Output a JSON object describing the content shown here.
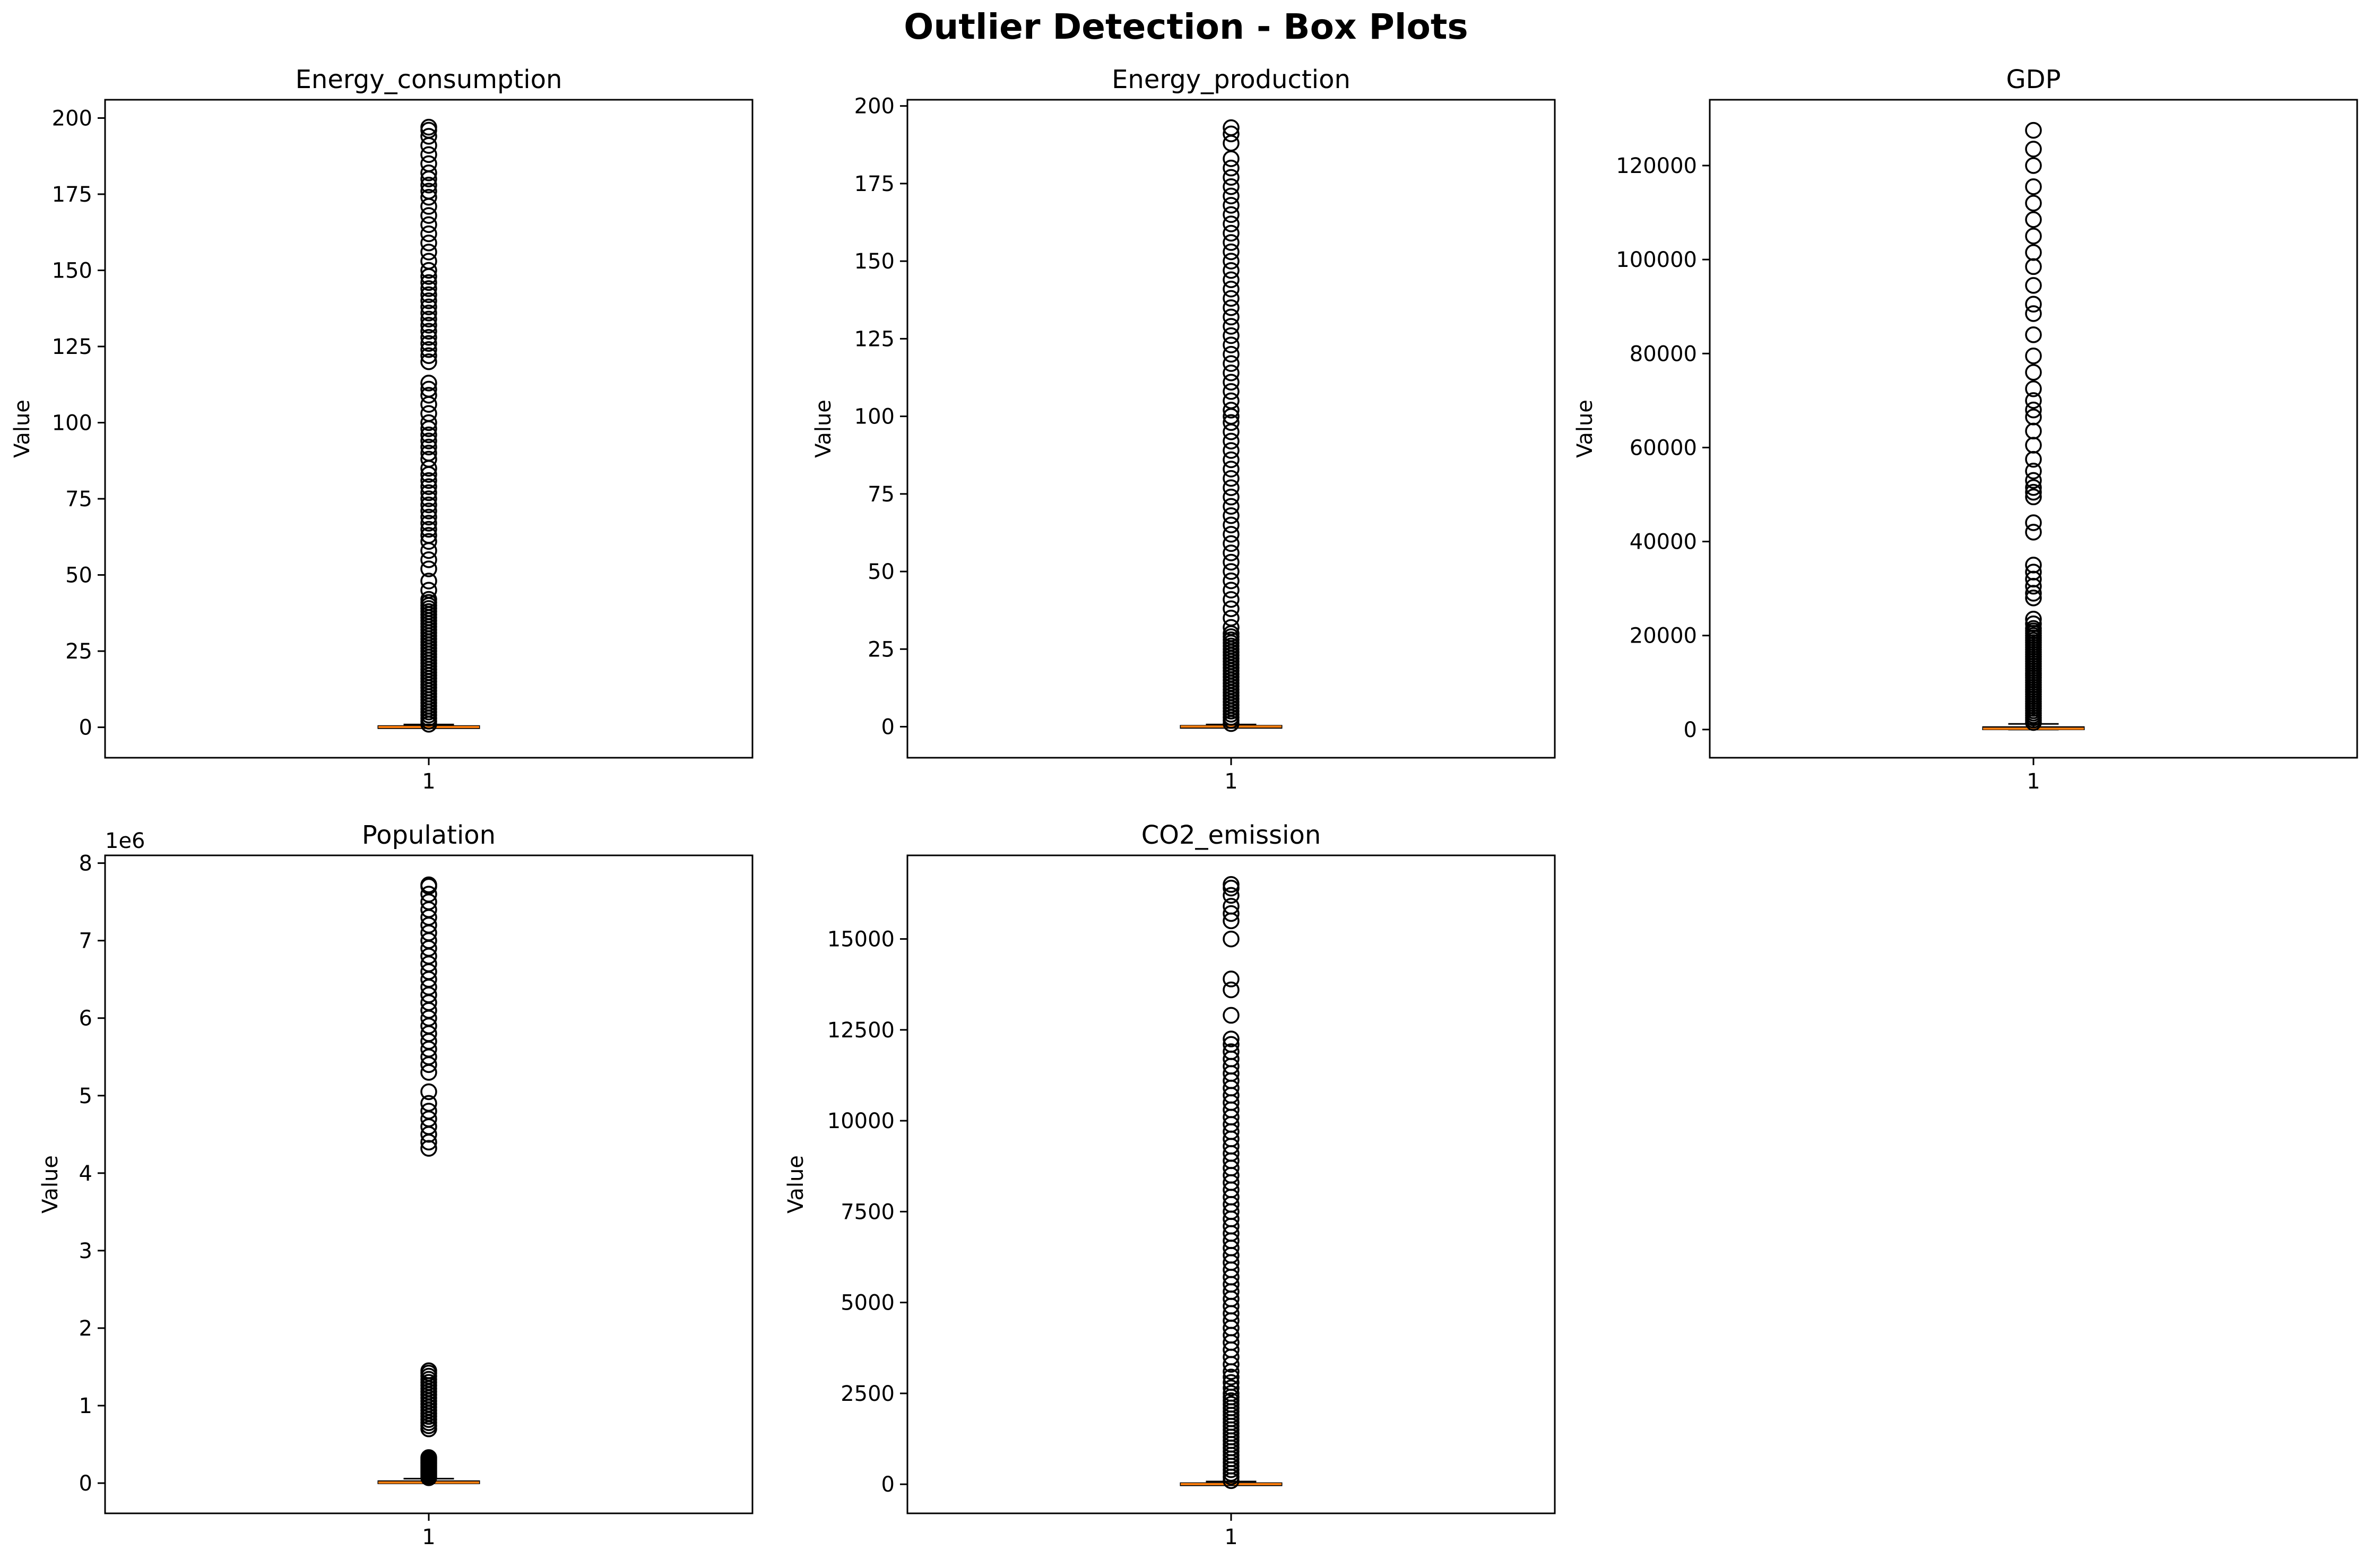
{
  "figure_title": "Outlier Detection - Box Plots",
  "colors": {
    "median": "#ff7f0e",
    "frame": "#000000",
    "background": "#ffffff"
  },
  "chart_data": [
    {
      "type": "box",
      "title": "Energy_consumption",
      "xlabel": "",
      "ylabel": "Value",
      "categories": [
        "1"
      ],
      "ylim": [
        -10,
        206
      ],
      "yticks": [
        0,
        25,
        50,
        75,
        100,
        125,
        150,
        175,
        200
      ],
      "y_tick_labels": [
        "0",
        "25",
        "50",
        "75",
        "100",
        "125",
        "150",
        "175",
        "200"
      ],
      "offset_label": "",
      "grid": false,
      "box": {
        "min": 0,
        "q1": 0.01,
        "median": 0.08,
        "q3": 0.4,
        "max": 0.9
      },
      "outliers": [
        1,
        2,
        3,
        4,
        5,
        6,
        7,
        8,
        9,
        10,
        11,
        12,
        13,
        14,
        15,
        16,
        17,
        18,
        19,
        20,
        21,
        22,
        23,
        24,
        25,
        26,
        27,
        28,
        29,
        30,
        31,
        32,
        33,
        34,
        35,
        36,
        37,
        38,
        39,
        40,
        41,
        42,
        45,
        48,
        52,
        55,
        58,
        61,
        63,
        65,
        67,
        69,
        71,
        73,
        75,
        77,
        79,
        81,
        83,
        85,
        88,
        90,
        92,
        94,
        96,
        98,
        100,
        103,
        106,
        109,
        111,
        113,
        120,
        122,
        124,
        126,
        128,
        130,
        132,
        134,
        136,
        138,
        140,
        142,
        144,
        146,
        148,
        150,
        153,
        156,
        159,
        162,
        165,
        168,
        171,
        174,
        176,
        178,
        180,
        182,
        185,
        188,
        191,
        194,
        196,
        197
      ]
    },
    {
      "type": "box",
      "title": "Energy_production",
      "xlabel": "",
      "ylabel": "Value",
      "categories": [
        "1"
      ],
      "ylim": [
        -10,
        202
      ],
      "yticks": [
        0,
        25,
        50,
        75,
        100,
        125,
        150,
        175,
        200
      ],
      "y_tick_labels": [
        "0",
        "25",
        "50",
        "75",
        "100",
        "125",
        "150",
        "175",
        "200"
      ],
      "offset_label": "",
      "grid": false,
      "box": {
        "min": 0,
        "q1": 0.0,
        "median": 0.05,
        "q3": 0.3,
        "max": 0.7
      },
      "outliers": [
        1,
        2,
        3,
        4,
        5,
        6,
        7,
        8,
        9,
        10,
        11,
        12,
        13,
        14,
        15,
        16,
        17,
        18,
        19,
        20,
        21,
        22,
        23,
        24,
        25,
        26,
        27,
        28,
        29,
        30,
        32,
        35,
        38,
        41,
        44,
        47,
        50,
        53,
        56,
        59,
        62,
        65,
        68,
        71,
        74,
        77,
        80,
        83,
        86,
        89,
        92,
        95,
        98,
        100,
        102,
        105,
        108,
        111,
        114,
        117,
        120,
        123,
        126,
        129,
        132,
        135,
        138,
        141,
        144,
        147,
        150,
        153,
        156,
        159,
        162,
        165,
        168,
        171,
        174,
        177,
        180,
        183,
        188,
        191,
        193
      ]
    },
    {
      "type": "box",
      "title": "GDP",
      "xlabel": "",
      "ylabel": "Value",
      "categories": [
        "1"
      ],
      "ylim": [
        -6000,
        134000
      ],
      "yticks": [
        0,
        20000,
        40000,
        60000,
        80000,
        100000,
        120000
      ],
      "y_tick_labels": [
        "0",
        "20000",
        "40000",
        "60000",
        "80000",
        "100000",
        "120000"
      ],
      "offset_label": "",
      "grid": false,
      "box": {
        "min": 0,
        "q1": 40,
        "median": 180,
        "q3": 520,
        "max": 1200
      },
      "outliers": [
        1500,
        2000,
        2500,
        3000,
        3500,
        4000,
        4500,
        5000,
        5500,
        6000,
        6500,
        7000,
        7500,
        8000,
        8500,
        9000,
        9500,
        10000,
        10500,
        11000,
        11500,
        12000,
        12500,
        13000,
        13500,
        14000,
        14500,
        15000,
        15500,
        16000,
        16500,
        17000,
        17500,
        18000,
        18500,
        19000,
        19500,
        20000,
        20500,
        21000,
        21500,
        22500,
        23500,
        28000,
        29000,
        30500,
        32000,
        33500,
        35000,
        42000,
        44000,
        49500,
        50500,
        51500,
        53000,
        55000,
        57500,
        60500,
        63500,
        66500,
        68000,
        70000,
        72500,
        76000,
        79500,
        84000,
        88500,
        90500,
        94500,
        98500,
        101500,
        105000,
        108500,
        112000,
        115500,
        120000,
        123500,
        127500
      ]
    },
    {
      "type": "box",
      "title": "Population",
      "xlabel": "",
      "ylabel": "Value",
      "categories": [
        "1"
      ],
      "ylim": [
        -390000,
        8100000
      ],
      "yticks": [
        0,
        1000000,
        2000000,
        3000000,
        4000000,
        5000000,
        6000000,
        7000000,
        8000000
      ],
      "y_tick_labels": [
        "0",
        "1",
        "2",
        "3",
        "4",
        "5",
        "6",
        "7",
        "8"
      ],
      "offset_label": "1e6",
      "grid": false,
      "box": {
        "min": 0,
        "q1": 2000,
        "median": 8000,
        "q3": 25000,
        "max": 58000
      },
      "outliers": [
        70000,
        90000,
        110000,
        130000,
        150000,
        170000,
        190000,
        210000,
        230000,
        250000,
        270000,
        290000,
        310000,
        330000,
        700000,
        740000,
        780000,
        820000,
        860000,
        900000,
        940000,
        980000,
        1020000,
        1060000,
        1100000,
        1140000,
        1180000,
        1220000,
        1260000,
        1300000,
        1340000,
        1380000,
        1420000,
        1450000,
        4320000,
        4400000,
        4500000,
        4600000,
        4700000,
        4800000,
        4900000,
        5050000,
        5300000,
        5400000,
        5500000,
        5600000,
        5700000,
        5800000,
        5900000,
        6000000,
        6100000,
        6200000,
        6300000,
        6400000,
        6500000,
        6600000,
        6700000,
        6800000,
        6900000,
        7000000,
        7100000,
        7200000,
        7300000,
        7400000,
        7500000,
        7600000,
        7700000,
        7720000
      ]
    },
    {
      "type": "box",
      "title": "CO2_emission",
      "xlabel": "",
      "ylabel": "Value",
      "categories": [
        "1"
      ],
      "ylim": [
        -800,
        17300
      ],
      "yticks": [
        0,
        2500,
        5000,
        7500,
        10000,
        12500,
        15000
      ],
      "y_tick_labels": [
        "0",
        "2500",
        "5000",
        "7500",
        "10000",
        "12500",
        "15000"
      ],
      "offset_label": "",
      "grid": false,
      "box": {
        "min": 0,
        "q1": 0.5,
        "median": 5,
        "q3": 30,
        "max": 75
      },
      "outliers": [
        100,
        200,
        300,
        400,
        500,
        600,
        700,
        800,
        900,
        1000,
        1100,
        1200,
        1300,
        1400,
        1500,
        1600,
        1700,
        1800,
        1900,
        2000,
        2100,
        2200,
        2300,
        2400,
        2500,
        2650,
        2800,
        2950,
        3100,
        3300,
        3500,
        3700,
        3900,
        4100,
        4300,
        4500,
        4700,
        4900,
        5100,
        5300,
        5500,
        5700,
        5900,
        6100,
        6300,
        6500,
        6700,
        6900,
        7100,
        7300,
        7500,
        7700,
        7900,
        8100,
        8300,
        8500,
        8700,
        8900,
        9100,
        9300,
        9500,
        9700,
        9900,
        10100,
        10300,
        10500,
        10700,
        10900,
        11100,
        11300,
        11500,
        11700,
        11900,
        12100,
        12250,
        12900,
        13600,
        13900,
        15000,
        15500,
        15700,
        15900,
        16200,
        16400,
        16500
      ]
    }
  ]
}
